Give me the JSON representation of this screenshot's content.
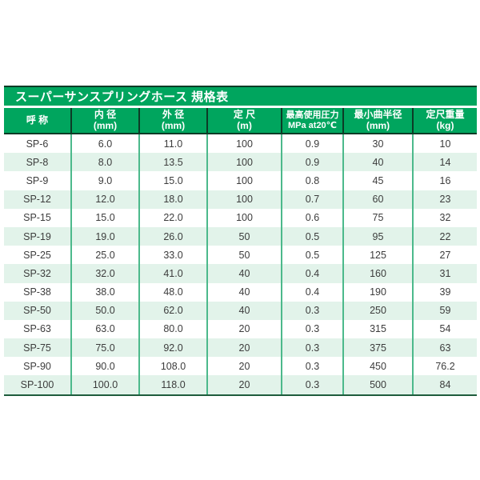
{
  "table": {
    "title": "スーパーサンスプリングホース 規格表",
    "columns": [
      {
        "lines": [
          "呼 称"
        ]
      },
      {
        "lines": [
          "内 径",
          "(mm)"
        ]
      },
      {
        "lines": [
          "外 径",
          "(mm)"
        ]
      },
      {
        "lines": [
          "定 尺",
          "(m)"
        ]
      },
      {
        "lines": [
          "最高使用圧力",
          "MPa at20℃"
        ]
      },
      {
        "lines": [
          "最小曲半径",
          "(mm)"
        ]
      },
      {
        "lines": [
          "定尺重量",
          "(kg)"
        ]
      }
    ],
    "rows": [
      [
        "SP-6",
        "6.0",
        "11.0",
        "100",
        "0.9",
        "30",
        "10"
      ],
      [
        "SP-8",
        "8.0",
        "13.5",
        "100",
        "0.9",
        "40",
        "14"
      ],
      [
        "SP-9",
        "9.0",
        "15.0",
        "100",
        "0.8",
        "45",
        "16"
      ],
      [
        "SP-12",
        "12.0",
        "18.0",
        "100",
        "0.7",
        "60",
        "23"
      ],
      [
        "SP-15",
        "15.0",
        "22.0",
        "100",
        "0.6",
        "75",
        "32"
      ],
      [
        "SP-19",
        "19.0",
        "26.0",
        "50",
        "0.5",
        "95",
        "22"
      ],
      [
        "SP-25",
        "25.0",
        "33.0",
        "50",
        "0.5",
        "125",
        "27"
      ],
      [
        "SP-32",
        "32.0",
        "41.0",
        "40",
        "0.4",
        "160",
        "31"
      ],
      [
        "SP-38",
        "38.0",
        "48.0",
        "40",
        "0.4",
        "190",
        "39"
      ],
      [
        "SP-50",
        "50.0",
        "62.0",
        "40",
        "0.3",
        "250",
        "59"
      ],
      [
        "SP-63",
        "63.0",
        "80.0",
        "20",
        "0.3",
        "315",
        "54"
      ],
      [
        "SP-75",
        "75.0",
        "92.0",
        "20",
        "0.3",
        "375",
        "63"
      ],
      [
        "SP-90",
        "90.0",
        "108.0",
        "20",
        "0.3",
        "450",
        "76.2"
      ],
      [
        "SP-100",
        "100.0",
        "118.0",
        "20",
        "0.3",
        "500",
        "84"
      ]
    ],
    "colors": {
      "header_green": "#00a55e",
      "row_stripe": "#e2f3ea",
      "dark_border": "#0d3b26",
      "grid_green": "#4cb98b",
      "text": "#3c3c3c",
      "header_text": "#ffffff"
    }
  }
}
